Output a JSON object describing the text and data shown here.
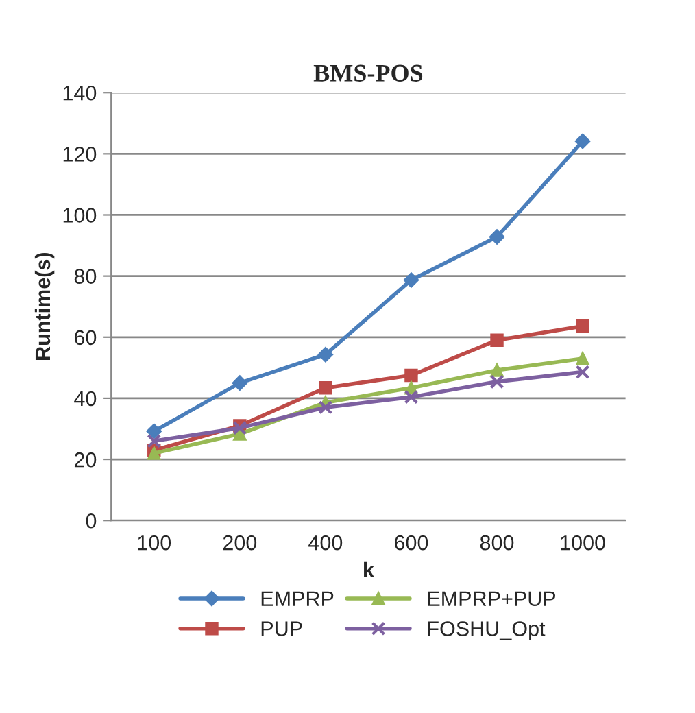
{
  "chart_data": {
    "type": "line",
    "title": "BMS-POS",
    "xlabel": "k",
    "ylabel": "Runtime(s)",
    "categories": [
      "100",
      "200",
      "400",
      "600",
      "800",
      "1000"
    ],
    "series": [
      {
        "name": "EMPRP",
        "color": "#4a7ebb",
        "marker": "diamond",
        "values": [
          29.2,
          45,
          54.3,
          78.7,
          92.8,
          124.1
        ]
      },
      {
        "name": "PUP",
        "color": "#be4b48",
        "marker": "square",
        "values": [
          23,
          31,
          43.4,
          47.5,
          59,
          63.6
        ]
      },
      {
        "name": "EMPRP+PUP",
        "color": "#98b954",
        "marker": "triangle",
        "values": [
          22,
          28.3,
          38.6,
          43.4,
          49.2,
          53
        ]
      },
      {
        "name": "FOSHU_Opt",
        "color": "#7d60a0",
        "marker": "cross",
        "values": [
          26,
          30.3,
          37,
          40.4,
          45.4,
          48.6
        ]
      }
    ],
    "ylim": [
      0,
      140
    ],
    "yticks": [
      0,
      20,
      40,
      60,
      80,
      100,
      120,
      140
    ],
    "grid": "y",
    "legend": "bottom",
    "line_style": "solid"
  }
}
